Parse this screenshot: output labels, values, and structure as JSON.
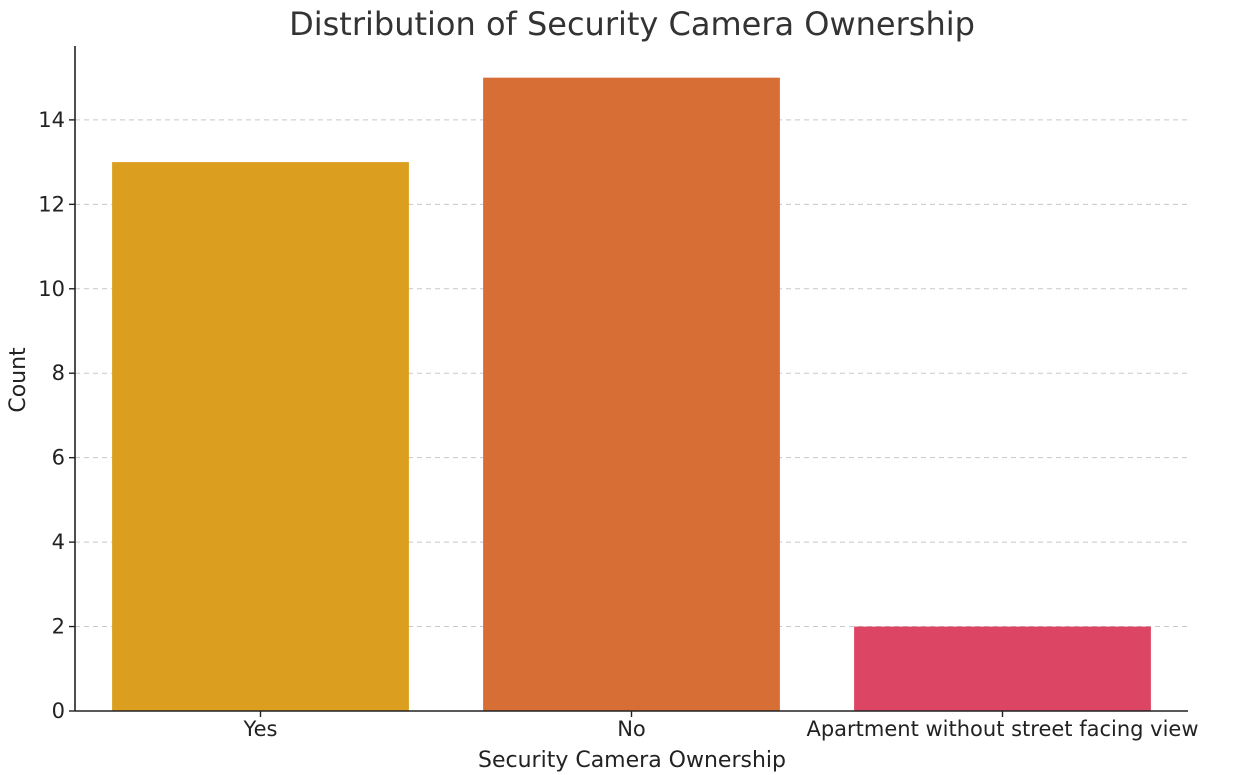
{
  "chart_data": {
    "type": "bar",
    "title": "Distribution of Security Camera Ownership",
    "xlabel": "Security Camera Ownership",
    "ylabel": "Count",
    "categories": [
      "Yes",
      "No",
      "Apartment without street facing view"
    ],
    "values": [
      13,
      15,
      2
    ],
    "colors": [
      "#DB9E1F",
      "#D76E36",
      "#DC4664"
    ],
    "ylim": [
      0,
      15.75
    ],
    "yticks": [
      0,
      2,
      4,
      6,
      8,
      10,
      12,
      14
    ],
    "grid": "y-dashed",
    "legend": "none"
  }
}
